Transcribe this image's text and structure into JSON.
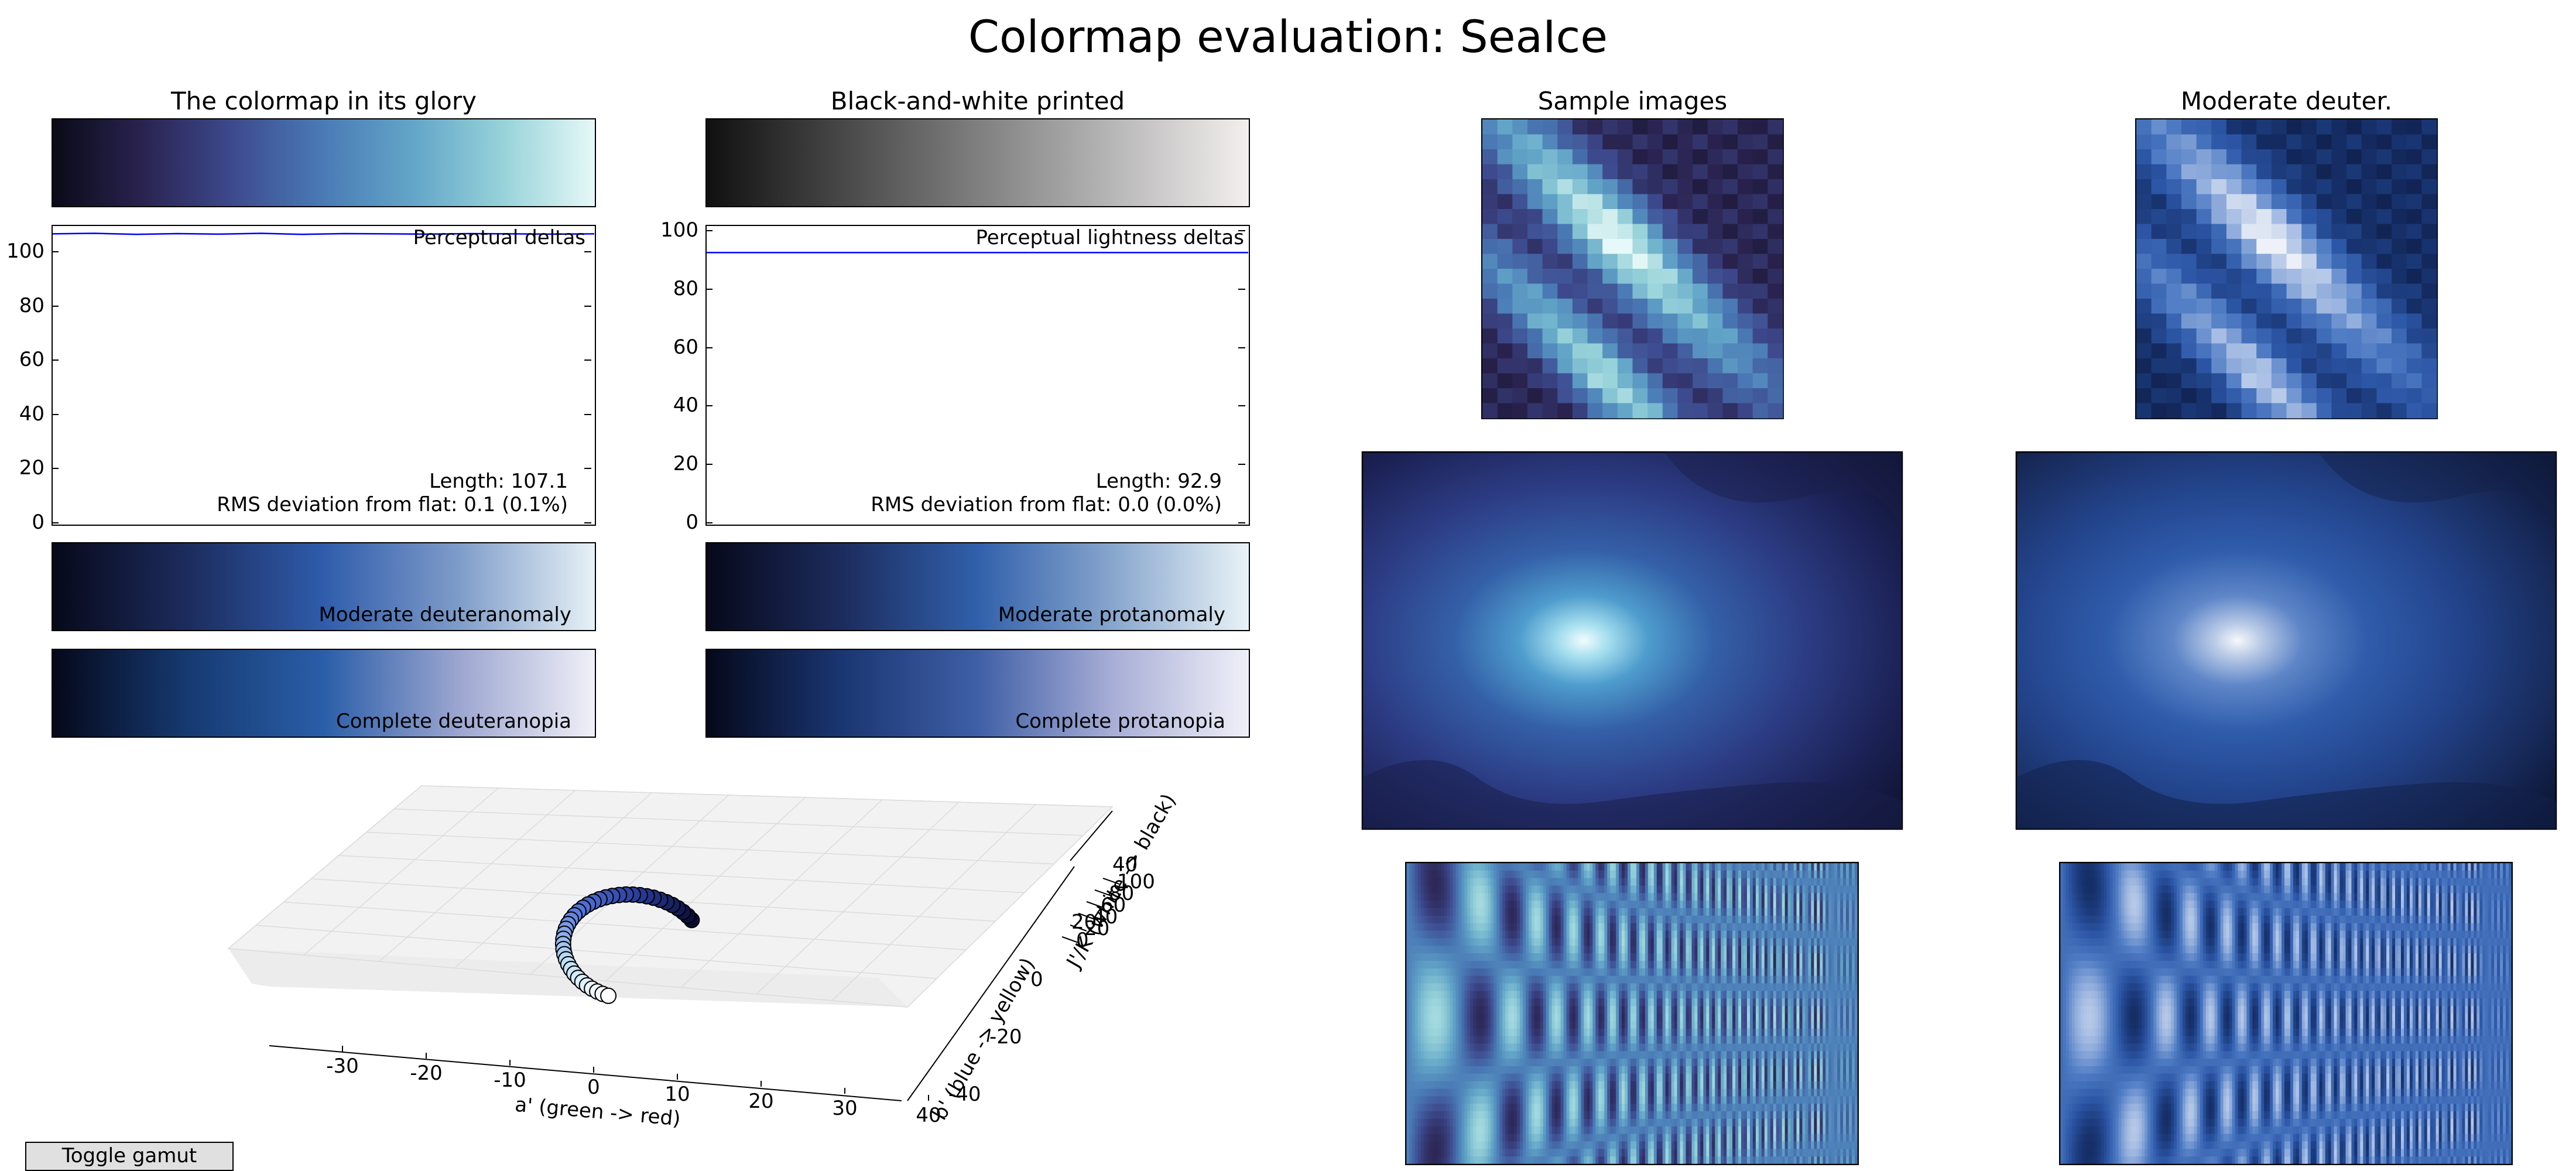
{
  "figure_title": "Colormap evaluation: SeaIce",
  "panel_titles": {
    "glory": "The colormap in its glory",
    "bw": "Black-and-white printed",
    "samples": "Sample images",
    "deuter": "Moderate deuter."
  },
  "colors": {
    "colormap_stops": [
      "#0a0a18",
      "#2a2350",
      "#3d4a8e",
      "#4a7bb6",
      "#63a6c8",
      "#98d3da",
      "#e6f8f7"
    ],
    "bw_stops": [
      "#101010",
      "#5a5a5a",
      "#a4a4a4",
      "#f3efef"
    ],
    "deuteranomaly_stops": [
      "#07091a",
      "#1c2c5e",
      "#2f5cab",
      "#7f9cc9",
      "#e7f1f6"
    ],
    "protanomaly_stops": [
      "#07091a",
      "#1c2c5e",
      "#3160ab",
      "#88a6cd",
      "#e9f3f7"
    ],
    "deuteranopia_stops": [
      "#05081a",
      "#163a72",
      "#2a5ea8",
      "#9ca6d0",
      "#f0f0f8"
    ],
    "protanopia_stops": [
      "#05081a",
      "#1a3672",
      "#3f5fa6",
      "#a8aed6",
      "#f0f0f8"
    ],
    "line": "#0000ff",
    "point_fill": "#5577dd",
    "pane": "#f2f2f2",
    "button_bg": "#e0e0e0"
  },
  "cvd_bars": {
    "deuteranomaly": "Moderate deuteranomaly",
    "deuteranopia": "Complete deuteranopia",
    "protanomaly": "Moderate protanomaly",
    "protanopia": "Complete protanopia"
  },
  "button": {
    "toggle_gamut": "Toggle gamut"
  },
  "chart_data": [
    {
      "type": "line",
      "legend_label": "Perceptual deltas",
      "ylim": [
        0,
        110
      ],
      "yticks": [
        "0",
        "20",
        "40",
        "60",
        "80",
        "100"
      ],
      "series": [
        {
          "values": [
            107.1,
            107.3,
            106.9,
            107.2,
            107.0,
            107.3,
            106.9,
            107.2,
            107.1,
            107.0,
            107.2,
            107.1,
            107.0,
            107.1
          ]
        }
      ],
      "annotations": [
        "Length: 107.1",
        "RMS deviation from flat: 0.1 (0.1%)"
      ]
    },
    {
      "type": "line",
      "legend_label": "Perceptual lightness deltas",
      "ylim": [
        0,
        102
      ],
      "yticks": [
        "0",
        "20",
        "40",
        "60",
        "80",
        "100"
      ],
      "series": [
        {
          "values": [
            92.9,
            92.9,
            92.9,
            92.9,
            92.9,
            92.9,
            92.9,
            92.9,
            92.9,
            92.9
          ]
        }
      ],
      "annotations": [
        "Length: 92.9",
        "RMS deviation from flat: 0.0 (0.0%)"
      ]
    },
    {
      "type": "scatter",
      "xlabel": "a' (green -> red)",
      "ylabel": "b' (blue -> yellow)",
      "zlabel": "J'/K (white -> black)",
      "xticks": [
        "-30",
        "-20",
        "-10",
        "0",
        "10",
        "20",
        "30",
        "40"
      ],
      "yticks": [
        "-40",
        "-20",
        "0",
        "20",
        "40"
      ],
      "zticks": [
        "0",
        "20",
        "40",
        "60",
        "80",
        "100"
      ]
    }
  ]
}
